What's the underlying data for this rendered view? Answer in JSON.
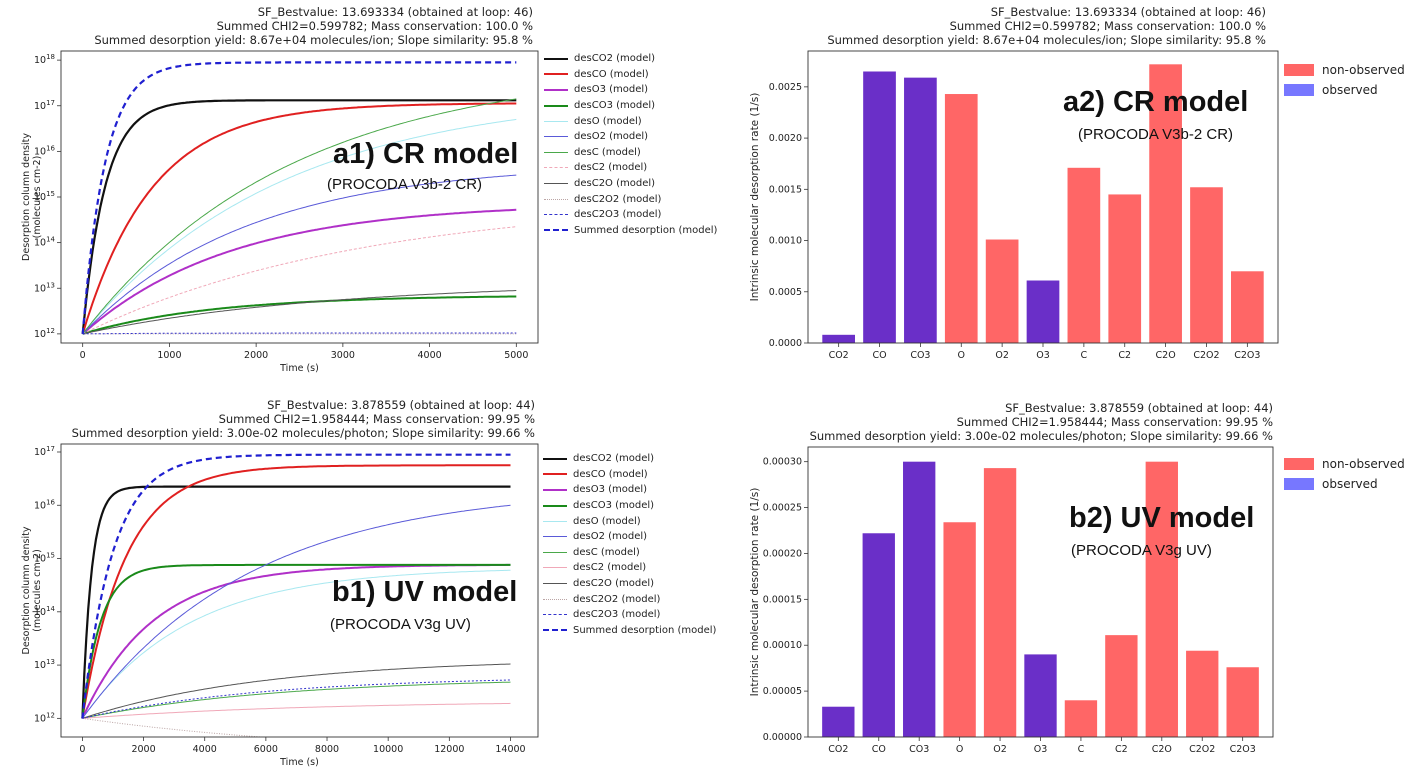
{
  "chart_data": [
    {
      "id": "a1",
      "type": "line",
      "header": [
        "SF_Bestvalue: 13.693334 (obtained at loop: 46)",
        "Summed CHI2=0.599782; Mass conservation: 100.0 %",
        "Summed desorption yield: 8.67e+04 molecules/ion; Slope similarity: 95.8 %"
      ],
      "label": "a1) CR model",
      "sublabel": "(PROCODA V3b-2 CR)",
      "xlabel": "Time (s)",
      "ylabel": [
        "Desorption column density",
        "(molecules cm-2)"
      ],
      "xlim": [
        -250,
        5250
      ],
      "xticks": [
        "0",
        "1000",
        "2000",
        "3000",
        "4000",
        "5000"
      ],
      "ylog": [
        11.8,
        18.2
      ],
      "yticks": [
        12,
        13,
        14,
        15,
        16,
        17,
        18
      ],
      "series": [
        {
          "name": "desCO2 (model)",
          "color": "#111111",
          "width": 2.2,
          "dash": "",
          "end": 17.12,
          "tau": 260
        },
        {
          "name": "desCO (model)",
          "color": "#e02020",
          "width": 2,
          "dash": "",
          "end": 17.05,
          "tau": 800
        },
        {
          "name": "desO3 (model)",
          "color": "#b030c8",
          "width": 2,
          "dash": "",
          "end": 14.72,
          "tau": 1700
        },
        {
          "name": "desCO3 (model)",
          "color": "#1a8a1a",
          "width": 2,
          "dash": "",
          "end": 12.82,
          "tau": 1500
        },
        {
          "name": "desO (model)",
          "color": "#a8e8f0",
          "width": 1,
          "dash": "",
          "end": 16.7,
          "tau": 2300
        },
        {
          "name": "desO2 (model)",
          "color": "#5a5ad8",
          "width": 1,
          "dash": "",
          "end": 15.48,
          "tau": 1900
        },
        {
          "name": "desC (model)",
          "color": "#4aa84a",
          "width": 1,
          "dash": "",
          "end": 17.15,
          "tau": 2400
        },
        {
          "name": "desC2 (model)",
          "color": "#f0a8b8",
          "width": 1,
          "dash": "3,2",
          "end": 14.35,
          "tau": 3200
        },
        {
          "name": "desC2O (model)",
          "color": "#555555",
          "width": 1,
          "dash": "",
          "end": 12.95,
          "tau": 2800
        },
        {
          "name": "desC2O2 (model)",
          "color": "#bba5a5",
          "width": 1,
          "dash": "1,1.5",
          "end": 12.0,
          "tau": 1000
        },
        {
          "name": "desC2O3 (model)",
          "color": "#3333cc",
          "width": 1,
          "dash": "2,2",
          "end": 12.02,
          "tau": 1000
        },
        {
          "name": "Summed desorption (model)",
          "color": "#2020d0",
          "width": 2.2,
          "dash": "6,4",
          "end": 17.95,
          "tau": 260
        }
      ]
    },
    {
      "id": "a2",
      "type": "bar",
      "header": [
        "SF_Bestvalue: 13.693334 (obtained at loop: 46)",
        "Summed CHI2=0.599782; Mass conservation: 100.0 %",
        "Summed desorption yield: 8.67e+04 molecules/ion; Slope similarity: 95.8 %"
      ],
      "label": "a2) CR model",
      "sublabel": "(PROCODA V3b-2 CR)",
      "ylabel": "Intrinsic molecular desorption rate (1/s)",
      "ylim": [
        0,
        0.00285
      ],
      "yticks": [
        "0.0000",
        "0.0005",
        "0.0010",
        "0.0015",
        "0.0020",
        "0.0025"
      ],
      "categories": [
        "CO2",
        "CO",
        "CO3",
        "O",
        "O2",
        "O3",
        "C",
        "C2",
        "C2O",
        "C2O2",
        "C2O3"
      ],
      "values": [
        8e-05,
        0.00265,
        0.00259,
        0.00243,
        0.00101,
        0.00061,
        0.00171,
        0.00145,
        0.00272,
        0.00152,
        0.0007
      ],
      "observed": [
        true,
        true,
        true,
        false,
        false,
        true,
        false,
        false,
        false,
        false,
        false
      ],
      "legend": [
        "non-observed",
        "observed"
      ],
      "colors": {
        "non_observed": "#ff6666",
        "observed": "#6a2fc8",
        "legend_observed": "#7777ff"
      }
    },
    {
      "id": "b1",
      "type": "line",
      "header": [
        "SF_Bestvalue: 3.878559 (obtained at loop: 44)",
        "Summed CHI2=1.958444; Mass conservation: 99.95 %",
        "Summed desorption yield: 3.00e-02 molecules/photon; Slope similarity: 99.66 %"
      ],
      "label": "b1) UV model",
      "sublabel": "(PROCODA V3g UV)",
      "xlabel": "Time (s)",
      "ylabel": [
        "Desorption column density",
        "(molecules cm-2)"
      ],
      "xlim": [
        -700,
        14900
      ],
      "xticks": [
        "0",
        "2000",
        "4000",
        "6000",
        "8000",
        "10000",
        "12000",
        "14000"
      ],
      "ylog": [
        11.65,
        17.15
      ],
      "yticks": [
        12,
        13,
        14,
        15,
        16,
        17
      ],
      "series": [
        {
          "name": "desCO2 (model)",
          "color": "#111111",
          "width": 2.2,
          "dash": "",
          "end": 16.35,
          "tau": 300
        },
        {
          "name": "desCO (model)",
          "color": "#e02020",
          "width": 2,
          "dash": "",
          "end": 16.75,
          "tau": 1400
        },
        {
          "name": "desO3 (model)",
          "color": "#b030c8",
          "width": 2,
          "dash": "",
          "end": 14.88,
          "tau": 2300
        },
        {
          "name": "desCO3 (model)",
          "color": "#1a8a1a",
          "width": 2,
          "dash": "",
          "end": 14.88,
          "tau": 600
        },
        {
          "name": "desO (model)",
          "color": "#a8e8f0",
          "width": 1,
          "dash": "",
          "end": 14.78,
          "tau": 3500
        },
        {
          "name": "desO2 (model)",
          "color": "#5a5ad8",
          "width": 1,
          "dash": "",
          "end": 16.0,
          "tau": 5500
        },
        {
          "name": "desC (model)",
          "color": "#4aa84a",
          "width": 1,
          "dash": "",
          "end": 12.68,
          "tau": 6500
        },
        {
          "name": "desC2 (model)",
          "color": "#f0a8b8",
          "width": 1,
          "dash": "",
          "end": 12.28,
          "tau": 7500
        },
        {
          "name": "desC2O (model)",
          "color": "#555555",
          "width": 1,
          "dash": "",
          "end": 13.02,
          "tau": 6000
        },
        {
          "name": "desC2O2 (model)",
          "color": "#bba5a5",
          "width": 1,
          "dash": "1,1.5",
          "end": 11.42,
          "tau": 9000
        },
        {
          "name": "desC2O3 (model)",
          "color": "#3333cc",
          "width": 1,
          "dash": "2,2",
          "end": 12.72,
          "tau": 6000
        },
        {
          "name": "Summed desorption (model)",
          "color": "#2020d0",
          "width": 2.2,
          "dash": "6,4",
          "end": 16.95,
          "tau": 1000
        }
      ]
    },
    {
      "id": "b2",
      "type": "bar",
      "header": [
        "SF_Bestvalue: 3.878559 (obtained at loop: 44)",
        "Summed CHI2=1.958444; Mass conservation: 99.95 %",
        "Summed desorption yield: 3.00e-02 molecules/photon; Slope similarity: 99.66 %"
      ],
      "label": "b2) UV model",
      "sublabel": "(PROCODA V3g UV)",
      "ylabel": "Intrinsic molecular desorption rate (1/s)",
      "ylim": [
        0,
        0.000316
      ],
      "yticks": [
        "0.00000",
        "0.00005",
        "0.00010",
        "0.00015",
        "0.00020",
        "0.00025",
        "0.00030"
      ],
      "categories": [
        "CO2",
        "CO",
        "CO3",
        "O",
        "O2",
        "O3",
        "C",
        "C2",
        "C2O",
        "C2O2",
        "C2O3"
      ],
      "values": [
        3.3e-05,
        0.000222,
        0.0003,
        0.000234,
        0.000293,
        9e-05,
        4e-05,
        0.000111,
        0.0003,
        9.4e-05,
        7.6e-05
      ],
      "observed": [
        true,
        true,
        true,
        false,
        false,
        true,
        false,
        false,
        false,
        false,
        false
      ],
      "legend": [
        "non-observed",
        "observed"
      ],
      "colors": {
        "non_observed": "#ff6666",
        "observed": "#6a2fc8",
        "legend_observed": "#7777ff"
      }
    }
  ]
}
